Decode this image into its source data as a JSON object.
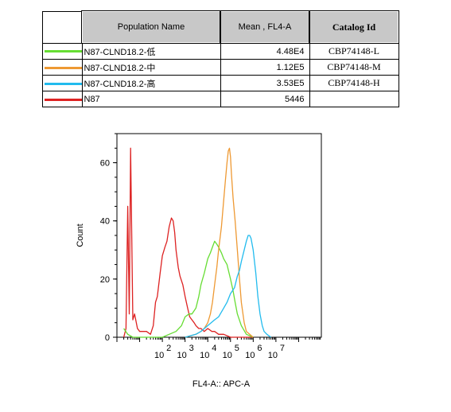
{
  "table": {
    "headers": {
      "name": "Population Name",
      "mean": "Mean , FL4-A",
      "catalog": "Catalog Id"
    },
    "rows": [
      {
        "name": "N87-CLND18.2-低",
        "mean": "4.48E4",
        "catalog": "CBP74148-L",
        "color": "#66dd33"
      },
      {
        "name": "N87-CLND18.2-中",
        "mean": "1.12E5",
        "catalog": "CBP74148-M",
        "color": "#ee9933"
      },
      {
        "name": "N87-CLND18.2-高",
        "mean": "3.53E5",
        "catalog": "CBP74148-H",
        "color": "#22bbee"
      },
      {
        "name": "N87",
        "mean": "5446",
        "catalog": "",
        "color": "#dd2222"
      }
    ]
  },
  "chart_data": {
    "type": "line",
    "xlabel": "FL4-A:: APC-A",
    "ylabel": "Count",
    "x_scale": "log",
    "xlim": [
      1,
      1000000000
    ],
    "ylim": [
      0,
      70
    ],
    "y_ticks": [
      0,
      20,
      40,
      60
    ],
    "x_ticks": [
      {
        "value": 100,
        "label": "2"
      },
      {
        "value": 1000,
        "label": "3"
      },
      {
        "value": 10000,
        "label": "4"
      },
      {
        "value": 100000,
        "label": "5"
      },
      {
        "value": 1000000,
        "label": "6"
      },
      {
        "value": 10000000,
        "label": "7"
      }
    ],
    "x_tick_base": "10",
    "series": [
      {
        "name": "N87",
        "color": "#dd2222",
        "x": [
          2,
          2.5,
          3,
          3.5,
          4,
          5,
          6,
          8,
          10,
          15,
          20,
          30,
          40,
          50,
          60,
          80,
          100,
          130,
          160,
          200,
          250,
          300,
          350,
          400,
          500,
          600,
          800,
          1000,
          1300,
          1600,
          2000,
          2500,
          3000,
          4000,
          5000,
          7000,
          10000,
          15000,
          20000,
          30000,
          50000,
          100000,
          300000,
          1000000
        ],
        "y": [
          0,
          3,
          45,
          8,
          65,
          6,
          8,
          3,
          2,
          2,
          2,
          1,
          4,
          12,
          14,
          22,
          28,
          31,
          33,
          38,
          41,
          40,
          36,
          30,
          24,
          21,
          18,
          14,
          10,
          7,
          6,
          5,
          4,
          3,
          3,
          2,
          3,
          2,
          2,
          1,
          1,
          0,
          0,
          0
        ]
      },
      {
        "name": "N87-CLND18.2-低",
        "color": "#66dd33",
        "x": [
          2,
          3,
          5,
          10,
          30,
          100,
          200,
          400,
          700,
          1000,
          1500,
          2000,
          3000,
          4000,
          5000,
          7000,
          10000,
          13000,
          16000,
          20000,
          25000,
          30000,
          40000,
          50000,
          70000,
          100000,
          130000,
          160000,
          200000,
          300000,
          500000,
          1000000
        ],
        "y": [
          3,
          1,
          0,
          0,
          0,
          0,
          1,
          2,
          4,
          7,
          8,
          8,
          10,
          14,
          18,
          22,
          27,
          29,
          31,
          33,
          32,
          31,
          29,
          27,
          25,
          20,
          16,
          12,
          8,
          4,
          1,
          0
        ]
      },
      {
        "name": "N87-CLND18.2-中",
        "color": "#ee9933",
        "x": [
          1000,
          3000,
          5000,
          7000,
          10000,
          13000,
          16000,
          20000,
          25000,
          30000,
          40000,
          50000,
          60000,
          70000,
          80000,
          90000,
          100000,
          110000,
          130000,
          160000,
          200000,
          250000,
          300000,
          400000,
          500000,
          700000,
          1000000
        ],
        "y": [
          0,
          1,
          2,
          3,
          5,
          8,
          12,
          18,
          24,
          30,
          38,
          47,
          54,
          60,
          64,
          65,
          62,
          56,
          48,
          40,
          30,
          20,
          12,
          5,
          2,
          1,
          0
        ]
      },
      {
        "name": "N87-CLND18.2-高",
        "color": "#22bbee",
        "x": [
          1000,
          3000,
          5000,
          10000,
          20000,
          30000,
          50000,
          70000,
          100000,
          150000,
          200000,
          250000,
          300000,
          400000,
          500000,
          600000,
          700000,
          800000,
          1000000,
          1300000,
          1600000,
          2000000,
          2500000,
          3000000,
          4000000,
          6000000
        ],
        "y": [
          0,
          1,
          2,
          4,
          6,
          7,
          10,
          12,
          15,
          17,
          21,
          23,
          26,
          30,
          33,
          35,
          35,
          34,
          30,
          22,
          14,
          8,
          4,
          2,
          1,
          0
        ]
      }
    ]
  }
}
